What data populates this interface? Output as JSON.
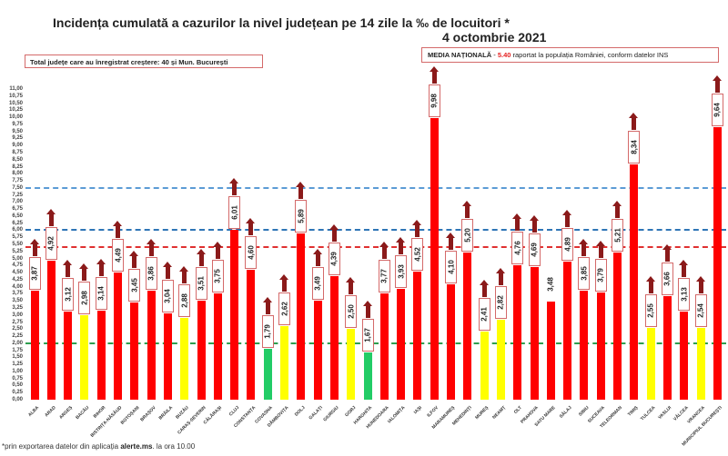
{
  "header": {
    "title": "Incidența cumulată a cazurilor la nivel județean pe 14 zile la ‰ de locuitori *",
    "date": "4 octombrie 2021",
    "total_box": "Total județe care au înregistrat creștere:  40 și Mun. București",
    "media_label": "MEDIA NAȚIONALĂ",
    "media_dash": " - ",
    "media_value": "5.40",
    "media_suffix": " raportat la populația României, conform datelor INS"
  },
  "footnote": {
    "prefix": "*prin exportarea datelor din aplicația ",
    "bold": "alerte.ms",
    "suffix": ". la ora 10.00"
  },
  "colors": {
    "red": "#ff0000",
    "yellow": "#ffff00",
    "green": "#22cc66",
    "arrow": "#8b1a1a",
    "line_blue_light": "#5b9bd5",
    "line_blue": "#2e75b6",
    "line_red": "#e03030",
    "line_green": "#2e9e4f"
  },
  "chart_data": {
    "type": "bar",
    "title": "Incidența cumulată a cazurilor la nivel județean pe 14 zile la ‰ de locuitori *",
    "subtitle": "4 octombrie 2021",
    "xlabel": "",
    "ylabel": "",
    "ylim": [
      0,
      11
    ],
    "ytick_step": 0.25,
    "yticks": [
      "0,00",
      "0,25",
      "0,50",
      "0,75",
      "1,00",
      "1,25",
      "1,50",
      "1,75",
      "2,00",
      "2,25",
      "2,50",
      "2,75",
      "3,00",
      "3,25",
      "3,50",
      "3,75",
      "4,00",
      "4,25",
      "4,50",
      "4,75",
      "5,00",
      "5,25",
      "5,50",
      "5,75",
      "6,00",
      "6,25",
      "6,50",
      "6,75",
      "7,00",
      "7,25",
      "7,50",
      "7,75",
      "8,00",
      "8,25",
      "8,50",
      "8,75",
      "9,00",
      "9,25",
      "9,50",
      "9,75",
      "10,00",
      "10,25",
      "10,50",
      "10,75",
      "11,00"
    ],
    "reference_lines": [
      {
        "value": 7.5,
        "color": "#5b9bd5",
        "style": "dashed"
      },
      {
        "value": 6.0,
        "color": "#2e75b6",
        "style": "dashed"
      },
      {
        "value": 5.4,
        "color": "#e03030",
        "style": "dashed",
        "label": "Media națională 5.40"
      },
      {
        "value": 2.0,
        "color": "#2e9e4f",
        "style": "dashed"
      }
    ],
    "categories": [
      "ALBA",
      "ARAD",
      "ARGEȘ",
      "BACĂU",
      "BIHOR",
      "BISTRIȚA-NĂSĂUD",
      "BOTOȘANI",
      "BRAȘOV",
      "BRĂILA",
      "BUZĂU",
      "CARAȘ-SEVERIN",
      "CĂLĂRAȘI",
      "CLUJ",
      "CONSTANȚA",
      "COVASNA",
      "DÂMBOVIȚA",
      "DOLJ",
      "GALAȚI",
      "GIURGIU",
      "GORJ",
      "HARGHITA",
      "HUNEDOARA",
      "IALOMIȚA",
      "IAȘI",
      "ILFOV",
      "MARAMUREȘ",
      "MEHEDINȚI",
      "MUREȘ",
      "NEAMȚ",
      "OLT",
      "PRAHOVA",
      "SATU MARE",
      "SĂLAJ",
      "SIBIU",
      "SUCEAVA",
      "TELEORMAN",
      "TIMIȘ",
      "TULCEA",
      "VASLUI",
      "VÂLCEA",
      "VRANCEA",
      "MUNICIPIUL BUCUREȘTI"
    ],
    "values": [
      3.87,
      4.92,
      3.12,
      2.98,
      3.14,
      4.49,
      3.45,
      3.86,
      3.04,
      2.88,
      3.51,
      3.75,
      6.01,
      4.6,
      1.79,
      2.62,
      5.89,
      3.49,
      4.39,
      2.5,
      1.67,
      3.77,
      3.93,
      4.52,
      9.98,
      4.1,
      5.2,
      2.41,
      2.82,
      4.76,
      4.69,
      3.48,
      4.89,
      3.85,
      3.79,
      5.21,
      8.34,
      2.55,
      3.66,
      3.13,
      2.54,
      9.64
    ],
    "value_labels": [
      "3,87",
      "4,92",
      "3,12",
      "2,98",
      "3,14",
      "4,49",
      "3,45",
      "3,86",
      "3,04",
      "2,88",
      "3,51",
      "3,75",
      "6,01",
      "4,60",
      "1,79",
      "2,62",
      "5,89",
      "3,49",
      "4,39",
      "2,50",
      "1,67",
      "3,77",
      "3,93",
      "4,52",
      "9,98",
      "4,10",
      "5,20",
      "2,41",
      "2,82",
      "4,76",
      "4,69",
      "3,48",
      "4,89",
      "3,85",
      "3,79",
      "5,21",
      "8,34",
      "2,55",
      "3,66",
      "3,13",
      "2,54",
      "9,64"
    ],
    "bar_colors": [
      "red",
      "red",
      "red",
      "yellow",
      "red",
      "red",
      "red",
      "red",
      "red",
      "yellow",
      "red",
      "red",
      "red",
      "red",
      "green",
      "yellow",
      "red",
      "red",
      "red",
      "yellow",
      "green",
      "red",
      "red",
      "red",
      "red",
      "red",
      "red",
      "yellow",
      "yellow",
      "red",
      "red",
      "red",
      "red",
      "red",
      "red",
      "red",
      "red",
      "yellow",
      "red",
      "red",
      "yellow",
      "red"
    ],
    "increase_arrow": [
      true,
      true,
      true,
      true,
      true,
      true,
      true,
      true,
      true,
      true,
      true,
      true,
      true,
      true,
      true,
      true,
      true,
      true,
      true,
      true,
      true,
      true,
      true,
      true,
      true,
      true,
      true,
      true,
      true,
      true,
      true,
      false,
      true,
      true,
      true,
      true,
      true,
      true,
      true,
      true,
      true,
      true
    ],
    "legend": []
  }
}
